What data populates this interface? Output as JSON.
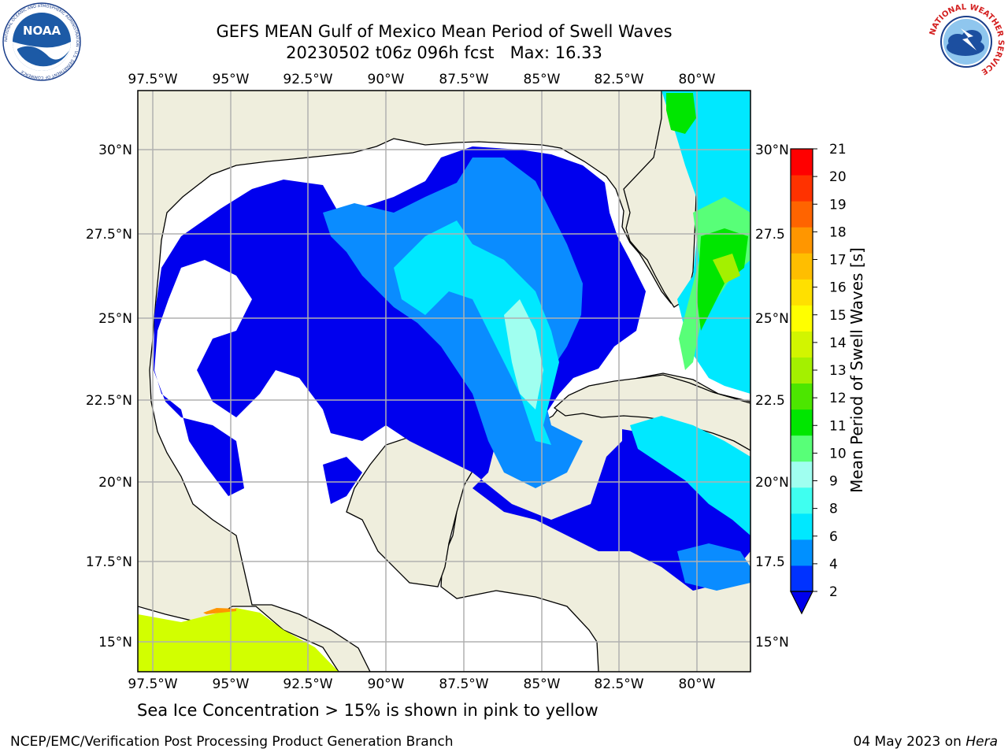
{
  "title_line1": "GEFS MEAN Gulf of Mexico Mean Period of Swell Waves",
  "title_line2": "20230502 t06z 096h fcst   Max: 16.33",
  "logos": {
    "noaa_text": "NOAA",
    "noaa_ring": "NATIONAL OCEANIC AND ATMOSPHERIC ADMINISTRATION · U.S. DEPARTMENT OF COMMERCE",
    "nws_ring": "NATIONAL WEATHER SERVICE"
  },
  "map": {
    "lon_labels": [
      "97.5°W",
      "95°W",
      "92.5°W",
      "90°W",
      "87.5°W",
      "85°W",
      "82.5°W",
      "80°W"
    ],
    "lat_labels_left": [
      "30°N",
      "27.5°N",
      "25°N",
      "22.5°N",
      "20°N",
      "17.5°N",
      "15°N"
    ],
    "lat_labels_right": [
      "30°N",
      "27.5",
      "25°N",
      "22.5",
      "20°N",
      "17.5",
      "15°N"
    ],
    "land_color": "#efeedd",
    "ocean_color": "#ffffff"
  },
  "colorbar": {
    "label": "Mean Period of Swell Waves [s]",
    "ticks": [
      "2",
      "4",
      "6",
      "8",
      "9",
      "10",
      "11",
      "12",
      "13",
      "14",
      "15",
      "16",
      "17",
      "18",
      "19",
      "20",
      "21"
    ],
    "colors": [
      "#0032ff",
      "#0090ff",
      "#00e8ff",
      "#3ffff0",
      "#a0fff0",
      "#58ff78",
      "#00e600",
      "#4ce600",
      "#a4f000",
      "#d2f500",
      "#ffff00",
      "#ffe000",
      "#ffbe00",
      "#ff9600",
      "#ff6400",
      "#ff3200",
      "#ff0000"
    ],
    "extend_min_color": "#0000ee"
  },
  "caption": "Sea Ice Concentration > 15% is shown in pink to yellow",
  "credit": "NCEP/EMC/Verification Post Processing Product Generation Branch",
  "date": "04 May 2023 on",
  "host": "Hera"
}
